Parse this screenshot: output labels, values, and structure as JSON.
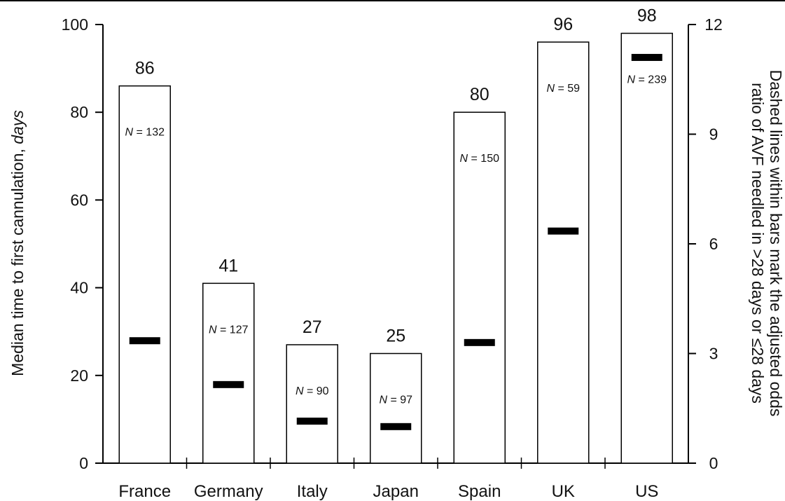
{
  "chart_data": {
    "type": "bar",
    "categories": [
      "France",
      "Germany",
      "Italy",
      "Japan",
      "Spain",
      "UK",
      "US"
    ],
    "values": [
      86,
      41,
      27,
      25,
      80,
      96,
      98
    ],
    "value_labels": [
      "86",
      "41",
      "27",
      "25",
      "80",
      "96",
      "98"
    ],
    "n_values": [
      132,
      127,
      90,
      97,
      150,
      59,
      239
    ],
    "n_prefix": "N",
    "n_sep": " = ",
    "odds_ratio": [
      3.35,
      2.15,
      1.15,
      1.0,
      3.3,
      6.35,
      11.1
    ],
    "ylabel_main": "Median time to first cannulation, ",
    "ylabel_unit": "days",
    "ylabel_right_line1": "Dashed lines within bars mark the adjusted odds",
    "ylabel_right_line2": "ratio of AVF needled in >28 days or ≤28 days",
    "ylim": [
      0,
      100
    ],
    "yticks": [
      "0",
      "20",
      "40",
      "60",
      "80",
      "100"
    ],
    "y2lim": [
      0,
      12
    ],
    "y2ticks": [
      "0",
      "3",
      "6",
      "9",
      "12"
    ],
    "grid": false,
    "legend": "none"
  }
}
